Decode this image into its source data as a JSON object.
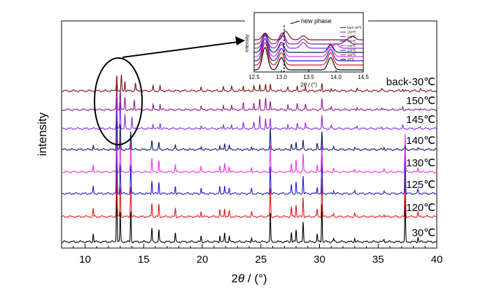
{
  "chart_data": {
    "type": "line",
    "xlabel_prefix": "2",
    "xlabel_theta": "θ",
    "xlabel_suffix": " / (°)",
    "ylabel": "intensity",
    "xlim": [
      8,
      40
    ],
    "xticks": [
      10,
      15,
      20,
      25,
      30,
      35,
      40
    ],
    "xticklabels": [
      "10",
      "15",
      "20",
      "25",
      "30",
      "35",
      "40"
    ],
    "series": [
      {
        "name": "30℃",
        "color": "#000000",
        "peaks": [
          [
            10.7,
            0.15
          ],
          [
            12.7,
            1.0
          ],
          [
            13.0,
            0.55
          ],
          [
            13.9,
            0.55
          ],
          [
            15.7,
            0.25
          ],
          [
            16.3,
            0.22
          ],
          [
            17.7,
            0.15
          ],
          [
            19.9,
            0.1
          ],
          [
            21.5,
            0.12
          ],
          [
            21.9,
            0.16
          ],
          [
            22.3,
            0.1
          ],
          [
            24.2,
            0.08
          ],
          [
            25.8,
            0.52
          ],
          [
            27.6,
            0.18
          ],
          [
            28.0,
            0.22
          ],
          [
            28.6,
            0.35
          ],
          [
            29.8,
            0.14
          ],
          [
            30.2,
            0.7
          ],
          [
            31.2,
            0.06
          ],
          [
            33.0,
            0.06
          ],
          [
            35.5,
            0.05
          ],
          [
            37.3,
            0.82
          ],
          [
            38.4,
            0.08
          ]
        ]
      },
      {
        "name": "120℃",
        "color": "#e31a1c",
        "peaks": [
          [
            10.7,
            0.15
          ],
          [
            12.7,
            1.0
          ],
          [
            13.0,
            0.55
          ],
          [
            13.9,
            0.55
          ],
          [
            15.7,
            0.25
          ],
          [
            16.3,
            0.22
          ],
          [
            17.7,
            0.15
          ],
          [
            19.9,
            0.1
          ],
          [
            21.5,
            0.12
          ],
          [
            21.9,
            0.16
          ],
          [
            22.3,
            0.1
          ],
          [
            24.2,
            0.08
          ],
          [
            25.8,
            0.52
          ],
          [
            27.6,
            0.18
          ],
          [
            28.0,
            0.22
          ],
          [
            28.6,
            0.35
          ],
          [
            29.8,
            0.14
          ],
          [
            30.2,
            0.7
          ],
          [
            31.2,
            0.06
          ],
          [
            33.0,
            0.06
          ],
          [
            35.5,
            0.05
          ],
          [
            37.3,
            0.82
          ],
          [
            38.4,
            0.08
          ]
        ]
      },
      {
        "name": "125℃",
        "color": "#1f1fd1",
        "peaks": [
          [
            10.7,
            0.14
          ],
          [
            12.7,
            1.0
          ],
          [
            13.0,
            0.55
          ],
          [
            13.9,
            0.52
          ],
          [
            15.7,
            0.24
          ],
          [
            16.3,
            0.21
          ],
          [
            17.7,
            0.14
          ],
          [
            19.9,
            0.1
          ],
          [
            21.5,
            0.12
          ],
          [
            21.9,
            0.15
          ],
          [
            22.3,
            0.1
          ],
          [
            24.2,
            0.08
          ],
          [
            25.8,
            0.5
          ],
          [
            27.6,
            0.17
          ],
          [
            28.0,
            0.21
          ],
          [
            28.6,
            0.33
          ],
          [
            29.8,
            0.13
          ],
          [
            30.2,
            0.68
          ],
          [
            31.2,
            0.06
          ],
          [
            33.0,
            0.06
          ],
          [
            35.5,
            0.05
          ],
          [
            37.3,
            0.78
          ],
          [
            38.4,
            0.08
          ]
        ]
      },
      {
        "name": "130℃",
        "color": "#e838e8",
        "peaks": [
          [
            10.7,
            0.14
          ],
          [
            12.7,
            1.0
          ],
          [
            13.0,
            0.55
          ],
          [
            13.9,
            0.5
          ],
          [
            15.7,
            0.24
          ],
          [
            16.3,
            0.21
          ],
          [
            17.7,
            0.14
          ],
          [
            19.9,
            0.1
          ],
          [
            21.5,
            0.12
          ],
          [
            21.9,
            0.15
          ],
          [
            22.3,
            0.1
          ],
          [
            24.2,
            0.08
          ],
          [
            25.8,
            0.48
          ],
          [
            27.6,
            0.17
          ],
          [
            28.0,
            0.21
          ],
          [
            28.6,
            0.33
          ],
          [
            29.8,
            0.13
          ],
          [
            30.2,
            0.66
          ],
          [
            31.2,
            0.06
          ],
          [
            33.0,
            0.06
          ],
          [
            35.5,
            0.05
          ],
          [
            37.3,
            0.7
          ],
          [
            38.4,
            0.08
          ]
        ]
      },
      {
        "name": "140℃",
        "color": "#0d1a6e",
        "peaks": [
          [
            10.7,
            0.08
          ],
          [
            12.7,
            0.8
          ],
          [
            13.0,
            0.45
          ],
          [
            13.9,
            0.35
          ],
          [
            15.7,
            0.15
          ],
          [
            16.3,
            0.13
          ],
          [
            17.7,
            0.08
          ],
          [
            19.9,
            0.06
          ],
          [
            21.5,
            0.08
          ],
          [
            21.9,
            0.1
          ],
          [
            22.3,
            0.08
          ],
          [
            24.2,
            0.06
          ],
          [
            25.8,
            0.38
          ],
          [
            27.6,
            0.1
          ],
          [
            28.0,
            0.14
          ],
          [
            28.6,
            0.18
          ],
          [
            29.8,
            0.1
          ],
          [
            30.2,
            0.35
          ],
          [
            31.2,
            0.04
          ],
          [
            33.0,
            0.05
          ],
          [
            35.5,
            0.04
          ],
          [
            37.3,
            0.06
          ],
          [
            38.4,
            0.05
          ]
        ]
      },
      {
        "name": "145℃",
        "color": "#8a2be2",
        "peaks": [
          [
            12.7,
            0.55
          ],
          [
            13.0,
            0.5
          ],
          [
            13.4,
            0.25
          ],
          [
            14.0,
            0.2
          ],
          [
            15.8,
            0.1
          ],
          [
            16.4,
            0.1
          ],
          [
            19.9,
            0.06
          ],
          [
            21.8,
            0.08
          ],
          [
            22.5,
            0.08
          ],
          [
            23.5,
            0.1
          ],
          [
            24.4,
            0.12
          ],
          [
            24.9,
            0.22
          ],
          [
            25.4,
            0.18
          ],
          [
            25.8,
            0.2
          ],
          [
            27.3,
            0.08
          ],
          [
            28.1,
            0.1
          ],
          [
            28.8,
            0.12
          ],
          [
            30.2,
            0.25
          ],
          [
            31.0,
            0.06
          ],
          [
            33.2,
            0.05
          ],
          [
            35.3,
            0.04
          ],
          [
            37.1,
            0.05
          ],
          [
            38.6,
            0.04
          ]
        ]
      },
      {
        "name": "150℃",
        "color": "#8b1c8b",
        "peaks": [
          [
            12.7,
            0.45
          ],
          [
            13.0,
            0.4
          ],
          [
            13.4,
            0.22
          ],
          [
            14.2,
            0.18
          ],
          [
            15.8,
            0.1
          ],
          [
            16.4,
            0.1
          ],
          [
            19.9,
            0.06
          ],
          [
            21.8,
            0.08
          ],
          [
            22.5,
            0.1
          ],
          [
            23.5,
            0.12
          ],
          [
            24.4,
            0.14
          ],
          [
            24.9,
            0.2
          ],
          [
            25.4,
            0.2
          ],
          [
            25.8,
            0.18
          ],
          [
            27.3,
            0.08
          ],
          [
            28.1,
            0.1
          ],
          [
            28.8,
            0.1
          ],
          [
            30.2,
            0.2
          ],
          [
            31.0,
            0.06
          ],
          [
            33.2,
            0.05
          ],
          [
            35.3,
            0.05
          ],
          [
            37.1,
            0.05
          ],
          [
            38.6,
            0.04
          ]
        ]
      },
      {
        "name": "back-30℃",
        "color": "#7b1010",
        "peaks": [
          [
            12.7,
            0.3
          ],
          [
            13.1,
            0.28
          ],
          [
            13.4,
            0.18
          ],
          [
            14.3,
            0.15
          ],
          [
            15.8,
            0.08
          ],
          [
            16.4,
            0.08
          ],
          [
            19.9,
            0.05
          ],
          [
            21.8,
            0.06
          ],
          [
            22.5,
            0.08
          ],
          [
            23.5,
            0.1
          ],
          [
            24.4,
            0.1
          ],
          [
            24.9,
            0.14
          ],
          [
            25.4,
            0.12
          ],
          [
            25.8,
            0.12
          ],
          [
            27.3,
            0.06
          ],
          [
            28.1,
            0.08
          ],
          [
            28.8,
            0.08
          ],
          [
            30.2,
            0.14
          ],
          [
            31.0,
            0.05
          ],
          [
            33.2,
            0.04
          ],
          [
            35.3,
            0.04
          ],
          [
            37.1,
            0.04
          ],
          [
            38.6,
            0.04
          ]
        ]
      }
    ],
    "annotation": "",
    "inset": {
      "xlim": [
        12.5,
        14.5
      ],
      "xticks": [
        12.5,
        13.0,
        13.5,
        14.0,
        14.5
      ],
      "xticklabels": [
        "12.5",
        "13.0",
        "13.5",
        "14.0",
        "14.5"
      ],
      "ylabel": "intensity",
      "xlabel_prefix": "2",
      "xlabel_theta": "θ",
      "xlabel_suffix": " / (°)",
      "annotation": "new phase",
      "marker_x": 13.05,
      "legend": [
        "back-30℃",
        "150℃",
        "145℃",
        "140℃",
        "130℃",
        "125℃",
        "120℃",
        "30℃"
      ]
    }
  }
}
